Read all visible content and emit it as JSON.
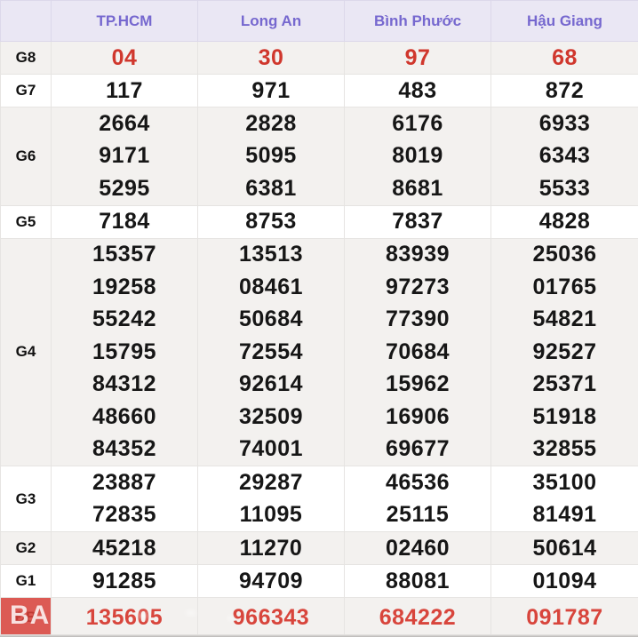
{
  "colors": {
    "header_text": "#7668cf",
    "header_bg": "#eae7f4",
    "stripe_bg": "#f3f1ef",
    "value_red": "#d0372d",
    "db_value_red": "#d8453c",
    "db_cell_bg": "#dc5a54",
    "text_black": "#161616"
  },
  "table": {
    "corner_label": "",
    "columns": [
      "TP.HCM",
      "Long An",
      "Bình Phước",
      "Hậu Giang"
    ],
    "watermark": "BA",
    "rows": [
      {
        "label": "G8",
        "red": true,
        "values": [
          [
            "04"
          ],
          [
            "30"
          ],
          [
            "97"
          ],
          [
            "68"
          ]
        ]
      },
      {
        "label": "G7",
        "values": [
          [
            "117"
          ],
          [
            "971"
          ],
          [
            "483"
          ],
          [
            "872"
          ]
        ]
      },
      {
        "label": "G6",
        "values": [
          [
            "2664",
            "9171",
            "5295"
          ],
          [
            "2828",
            "5095",
            "6381"
          ],
          [
            "6176",
            "8019",
            "8681"
          ],
          [
            "6933",
            "6343",
            "5533"
          ]
        ]
      },
      {
        "label": "G5",
        "values": [
          [
            "7184"
          ],
          [
            "8753"
          ],
          [
            "7837"
          ],
          [
            "4828"
          ]
        ]
      },
      {
        "label": "G4",
        "values": [
          [
            "15357",
            "19258",
            "55242",
            "15795",
            "84312",
            "48660",
            "84352"
          ],
          [
            "13513",
            "08461",
            "50684",
            "72554",
            "92614",
            "32509",
            "74001"
          ],
          [
            "83939",
            "97273",
            "77390",
            "70684",
            "15962",
            "16906",
            "69677"
          ],
          [
            "25036",
            "01765",
            "54821",
            "92527",
            "25371",
            "51918",
            "32855"
          ]
        ]
      },
      {
        "label": "G3",
        "values": [
          [
            "23887",
            "72835"
          ],
          [
            "29287",
            "11095"
          ],
          [
            "46536",
            "25115"
          ],
          [
            "35100",
            "81491"
          ]
        ]
      },
      {
        "label": "G2",
        "values": [
          [
            "45218"
          ],
          [
            "11270"
          ],
          [
            "02460"
          ],
          [
            "50614"
          ]
        ]
      },
      {
        "label": "G1",
        "values": [
          [
            "91285"
          ],
          [
            "94709"
          ],
          [
            "88081"
          ],
          [
            "01094"
          ]
        ]
      },
      {
        "label": "ĐB",
        "red": true,
        "db": true,
        "values": [
          [
            "135605"
          ],
          [
            "966343"
          ],
          [
            "684222"
          ],
          [
            "091787"
          ]
        ]
      }
    ]
  }
}
